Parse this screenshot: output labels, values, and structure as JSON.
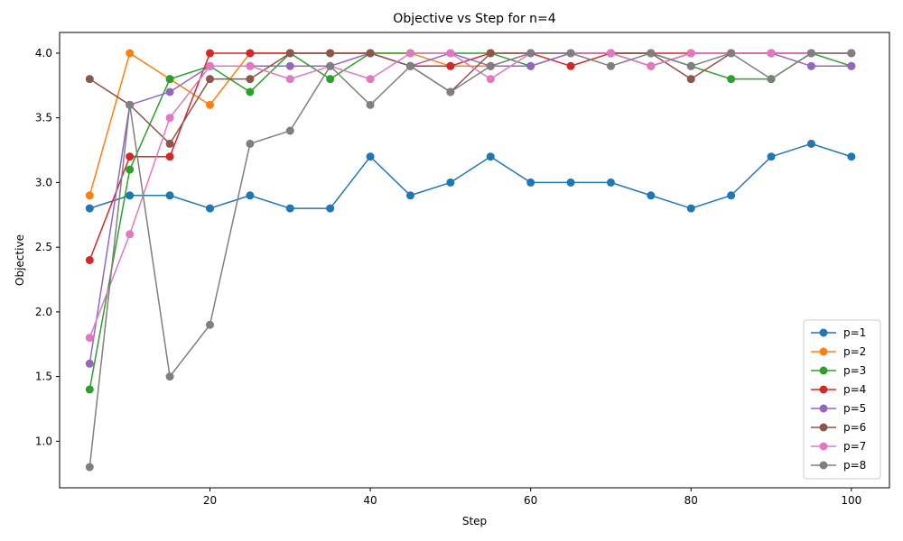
{
  "chart_data": {
    "type": "line",
    "title": "Objective vs Step for n=4",
    "xlabel": "Step",
    "ylabel": "Objective",
    "xlim": [
      1.25,
      104.75
    ],
    "ylim": [
      0.64,
      4.16
    ],
    "xticks": [
      20,
      40,
      60,
      80,
      100
    ],
    "yticks": [
      1.0,
      1.5,
      2.0,
      2.5,
      3.0,
      3.5,
      4.0
    ],
    "grid": false,
    "legend_position": "bottom-right",
    "x": [
      5,
      10,
      15,
      20,
      25,
      30,
      35,
      40,
      45,
      50,
      55,
      60,
      65,
      70,
      75,
      80,
      85,
      90,
      95,
      100
    ],
    "series": [
      {
        "name": "p=1",
        "color": "#1f77b4",
        "values": [
          2.8,
          2.9,
          2.9,
          2.8,
          2.9,
          2.8,
          2.8,
          3.2,
          2.9,
          3.0,
          3.2,
          3.0,
          3.0,
          3.0,
          2.9,
          2.8,
          2.9,
          3.2,
          3.3,
          3.2
        ]
      },
      {
        "name": "p=2",
        "color": "#ff7f0e",
        "values": [
          2.9,
          4.0,
          3.8,
          3.6,
          4.0,
          4.0,
          4.0,
          4.0,
          4.0,
          3.9,
          3.9,
          4.0,
          4.0,
          4.0,
          3.9,
          4.0,
          4.0,
          4.0,
          4.0,
          4.0
        ]
      },
      {
        "name": "p=3",
        "color": "#2ca02c",
        "values": [
          1.4,
          3.1,
          3.8,
          3.9,
          3.7,
          4.0,
          3.8,
          4.0,
          4.0,
          4.0,
          4.0,
          3.9,
          4.0,
          4.0,
          4.0,
          3.9,
          3.8,
          3.8,
          4.0,
          3.9
        ]
      },
      {
        "name": "p=4",
        "color": "#d62728",
        "values": [
          2.4,
          3.2,
          3.2,
          4.0,
          4.0,
          4.0,
          4.0,
          4.0,
          3.9,
          3.9,
          4.0,
          4.0,
          3.9,
          4.0,
          4.0,
          4.0,
          4.0,
          4.0,
          4.0,
          4.0
        ]
      },
      {
        "name": "p=5",
        "color": "#9467bd",
        "values": [
          1.6,
          3.6,
          3.7,
          3.9,
          3.9,
          3.9,
          3.9,
          4.0,
          3.9,
          4.0,
          3.9,
          3.9,
          4.0,
          4.0,
          3.9,
          4.0,
          4.0,
          4.0,
          3.9,
          3.9
        ]
      },
      {
        "name": "p=6",
        "color": "#8c564b",
        "values": [
          3.8,
          3.6,
          3.3,
          3.8,
          3.8,
          4.0,
          4.0,
          4.0,
          3.9,
          3.7,
          4.0,
          4.0,
          4.0,
          4.0,
          4.0,
          3.8,
          4.0,
          4.0,
          4.0,
          4.0
        ]
      },
      {
        "name": "p=7",
        "color": "#e377c2",
        "values": [
          1.8,
          2.6,
          3.5,
          3.9,
          3.9,
          3.8,
          3.9,
          3.8,
          4.0,
          4.0,
          3.8,
          4.0,
          4.0,
          4.0,
          3.9,
          4.0,
          4.0,
          4.0,
          4.0,
          4.0
        ]
      },
      {
        "name": "p=8",
        "color": "#7f7f7f",
        "values": [
          0.8,
          3.6,
          1.5,
          1.9,
          3.3,
          3.4,
          3.9,
          3.6,
          3.9,
          3.7,
          3.9,
          4.0,
          4.0,
          3.9,
          4.0,
          3.9,
          4.0,
          3.8,
          4.0,
          4.0
        ]
      }
    ]
  }
}
